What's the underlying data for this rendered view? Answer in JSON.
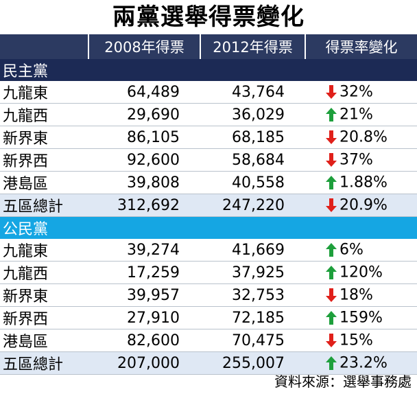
{
  "title": "兩黨選舉得票變化",
  "source": "資料來源：選舉事務處",
  "colors": {
    "header_bg": "#2c3a61",
    "dpp_bar": "#1c2a55",
    "cp_bar": "#15a6e3",
    "total_row": "#dfe8f4",
    "up_arrow": "#1e9f3c",
    "down_arrow": "#e0201a"
  },
  "chart_data": {
    "type": "table",
    "title": "兩黨選舉得票變化",
    "columns": [
      "",
      "2008年得票",
      "2012年得票",
      "得票率變化"
    ],
    "groups": [
      {
        "name": "民主黨",
        "rows": [
          {
            "region": "九龍東",
            "v2008": "64,489",
            "v2012": "43,764",
            "direction": "down",
            "change": "32%"
          },
          {
            "region": "九龍西",
            "v2008": "29,690",
            "v2012": "36,029",
            "direction": "up",
            "change": "21%"
          },
          {
            "region": "新界東",
            "v2008": "86,105",
            "v2012": "68,185",
            "direction": "down",
            "change": "20.8%"
          },
          {
            "region": "新界西",
            "v2008": "92,600",
            "v2012": "58,684",
            "direction": "down",
            "change": "37%"
          },
          {
            "region": "港島區",
            "v2008": "39,808",
            "v2012": "40,558",
            "direction": "up",
            "change": "1.88%"
          },
          {
            "region": "五區總計",
            "v2008": "312,692",
            "v2012": "247,220",
            "direction": "down",
            "change": "20.9%",
            "total": true
          }
        ]
      },
      {
        "name": "公民黨",
        "rows": [
          {
            "region": "九龍東",
            "v2008": "39,274",
            "v2012": "41,669",
            "direction": "up",
            "change": "6%"
          },
          {
            "region": "九龍西",
            "v2008": "17,259",
            "v2012": "37,925",
            "direction": "up",
            "change": "120%"
          },
          {
            "region": "新界東",
            "v2008": "39,957",
            "v2012": "32,753",
            "direction": "down",
            "change": "18%"
          },
          {
            "region": "新界西",
            "v2008": "27,910",
            "v2012": "72,185",
            "direction": "up",
            "change": "159%"
          },
          {
            "region": "港島區",
            "v2008": "82,600",
            "v2012": "70,475",
            "direction": "down",
            "change": "15%"
          },
          {
            "region": "五區總計",
            "v2008": "207,000",
            "v2012": "255,007",
            "direction": "up",
            "change": "23.2%",
            "total": true
          }
        ]
      }
    ]
  }
}
